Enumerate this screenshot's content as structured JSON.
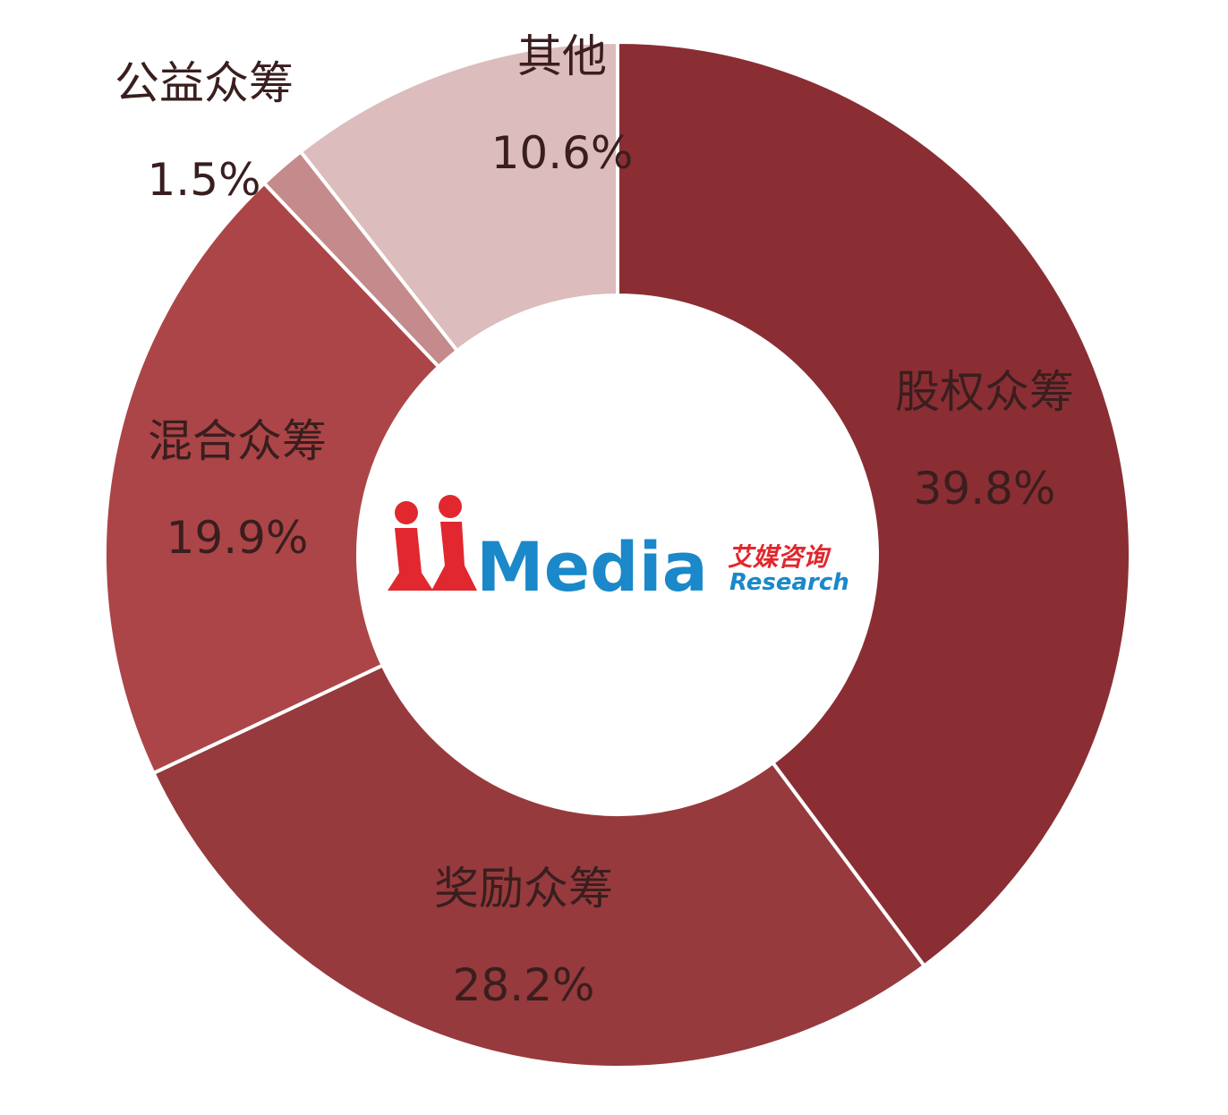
{
  "chart_data": {
    "type": "pie",
    "subtype": "donut",
    "slices": [
      {
        "label": "股权众筹",
        "value": 39.8,
        "value_text": "39.8%",
        "color": "#8a2e34"
      },
      {
        "label": "奖励众筹",
        "value": 28.2,
        "value_text": "28.2%",
        "color": "#963a3d"
      },
      {
        "label": "混合众筹",
        "value": 19.9,
        "value_text": "19.9%",
        "color": "#ac4548"
      },
      {
        "label": "公益众筹",
        "value": 1.5,
        "value_text": "1.5%",
        "color": "#c48a8c"
      },
      {
        "label": "其他",
        "value": 10.6,
        "value_text": "10.6%",
        "color": "#dcbcbd"
      }
    ],
    "legend": "none",
    "start_angle_deg": 0,
    "direction": "clockwise"
  },
  "logo": {
    "brand": "Media",
    "cn": "艾媒咨询",
    "en": "Research"
  },
  "colors": {
    "separator": "#ffffff",
    "logo_red": "#e0282e",
    "logo_blue": "#1a88c9"
  }
}
